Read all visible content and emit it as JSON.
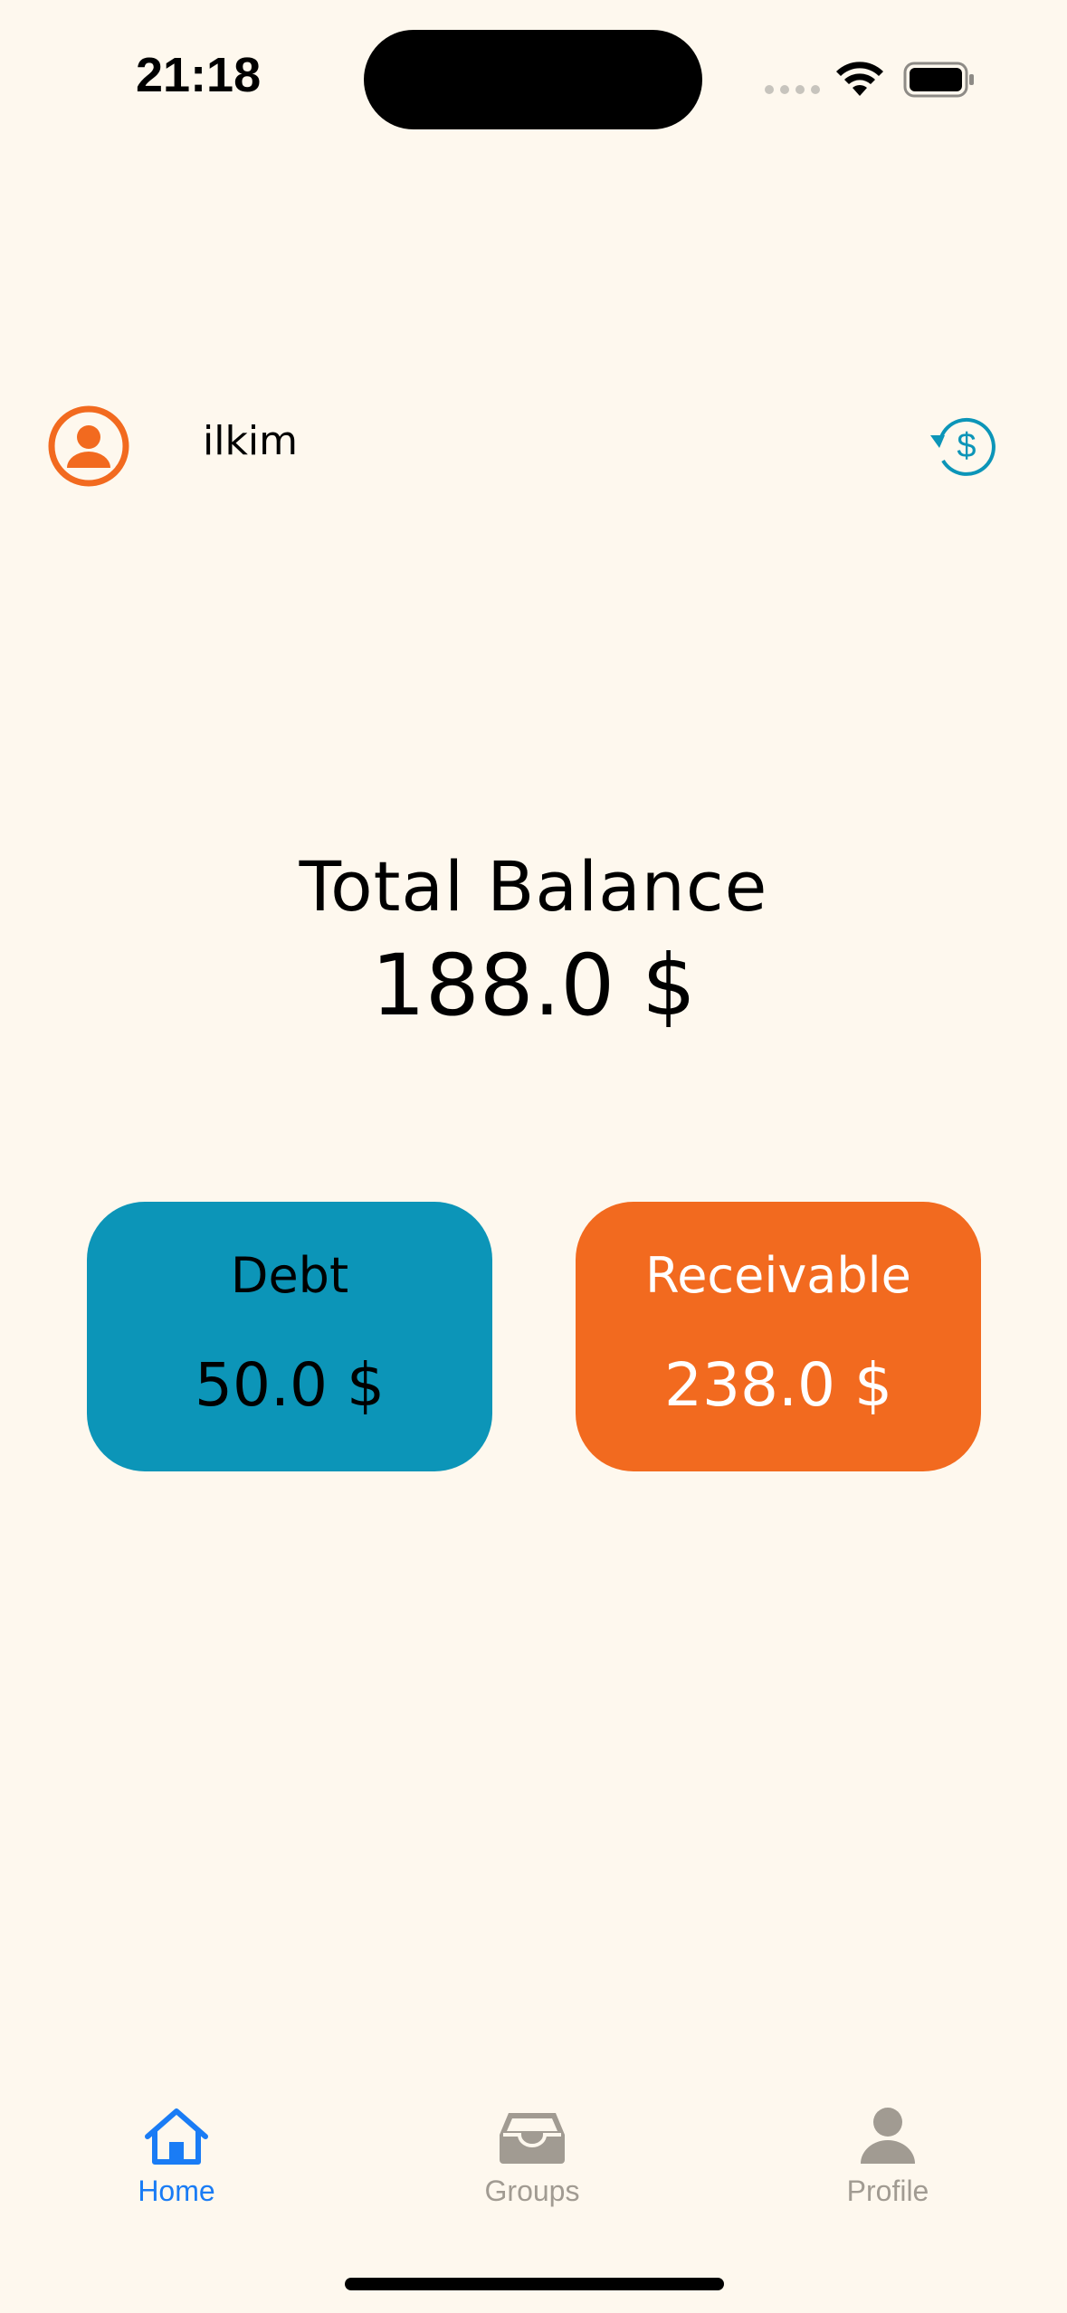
{
  "status_bar": {
    "time": "21:18"
  },
  "header": {
    "username": "ilkim",
    "avatar_icon": "person-circle-icon",
    "currency_icon": "dollar-refresh-icon"
  },
  "balance": {
    "label": "Total Balance",
    "value": "188.0 $"
  },
  "cards": {
    "debt": {
      "title": "Debt",
      "value": "50.0 $",
      "color": "#0C95B8"
    },
    "receivable": {
      "title": "Receivable",
      "value": "238.0 $",
      "color": "#F26A1F"
    }
  },
  "tab_bar": {
    "tabs": [
      {
        "label": "Home",
        "icon": "house-icon",
        "selected": true
      },
      {
        "label": "Groups",
        "icon": "tray-icon",
        "selected": false
      },
      {
        "label": "Profile",
        "icon": "person-icon",
        "selected": false
      }
    ]
  },
  "colors": {
    "background": "#FEF8EE",
    "accent_orange": "#F26A1F",
    "accent_teal": "#0C95B8",
    "tab_active": "#1A7CF5",
    "tab_inactive": "#A19B92"
  }
}
